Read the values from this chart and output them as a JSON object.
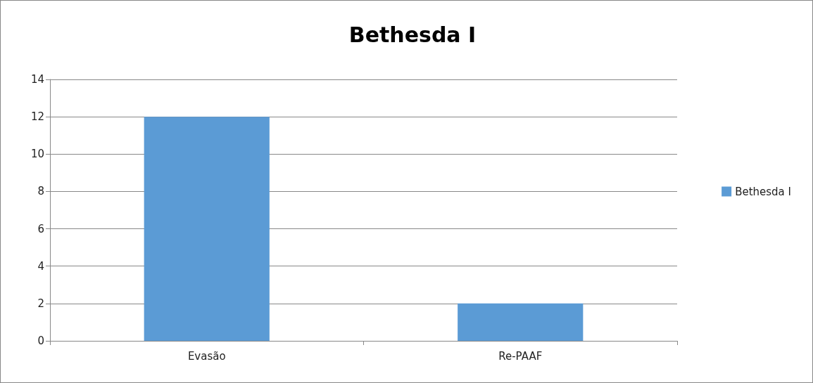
{
  "chart_data": {
    "type": "bar",
    "title": "Bethesda I",
    "categories": [
      "Evasão",
      "Re-PAAF"
    ],
    "series": [
      {
        "name": "Bethesda I",
        "color": "#5b9bd5",
        "values": [
          12,
          2
        ]
      }
    ],
    "ylim": [
      0,
      14
    ],
    "yticks": [
      0,
      2,
      4,
      6,
      8,
      10,
      12,
      14
    ],
    "grid": "y",
    "legend": "right"
  }
}
